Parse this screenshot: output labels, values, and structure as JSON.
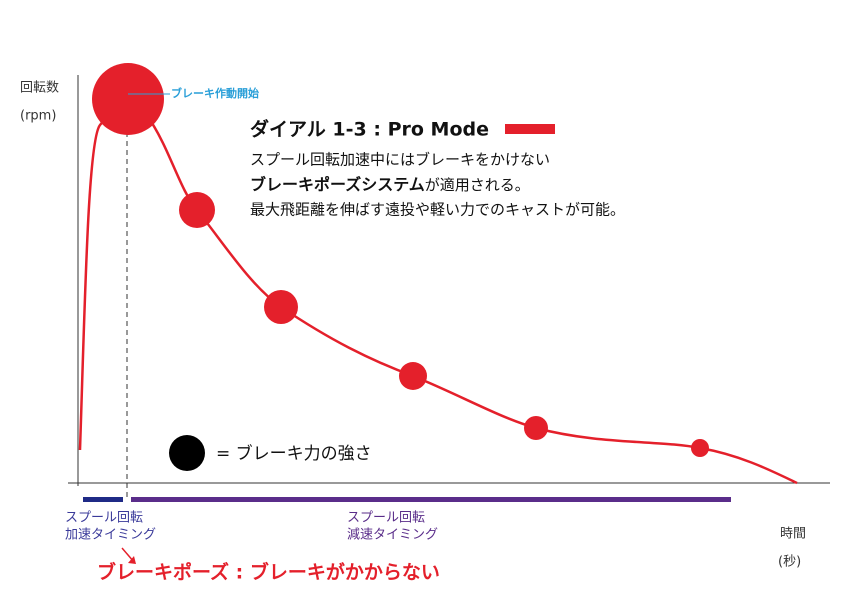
{
  "y_axis": {
    "label": "回転数",
    "unit": "(rpm)"
  },
  "x_axis": {
    "label": "時間",
    "unit": "(秒)"
  },
  "brake_start": "ブレーキ作動開始",
  "mode": {
    "title": "ダイアル 1-3 : Pro Mode",
    "line1": "スプール回転加速中にはブレーキをかけない",
    "line2_bold": "ブレーキポーズシステム",
    "line2_rest": "が適用される。",
    "line3": "最大飛距離を伸ばす遠投や軽い力でのキャストが可能。"
  },
  "legend": "= ブレーキ力の強さ",
  "phases": [
    {
      "line1": "スプール回転",
      "line2": "加速タイミング"
    },
    {
      "line1": "スプール回転",
      "line2": "減速タイミング"
    }
  ],
  "note": "ブレーキポーズ : ブレーキがかからない"
}
